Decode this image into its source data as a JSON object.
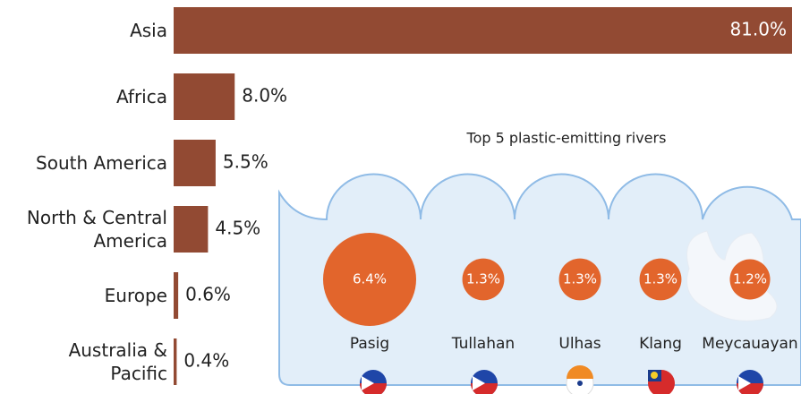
{
  "chart_data": [
    {
      "type": "hbar",
      "categories": [
        "Asia",
        "Africa",
        "South America",
        "North & Central America",
        "Europe",
        "Australia & Pacific"
      ],
      "values": [
        81.0,
        8.0,
        5.5,
        4.5,
        0.6,
        0.4
      ],
      "value_labels": [
        "81.0%",
        "8.0%",
        "5.5%",
        "4.5%",
        "0.6%",
        "0.4%"
      ],
      "color": "#924a33"
    },
    {
      "type": "bubble",
      "title": "Top 5 plastic-emitting rivers",
      "categories": [
        "Pasig",
        "Tullahan",
        "Ulhas",
        "Klang",
        "Meycauayan"
      ],
      "values": [
        6.4,
        1.3,
        1.3,
        1.3,
        1.2
      ],
      "value_labels": [
        "6.4%",
        "1.3%",
        "1.3%",
        "1.3%",
        "1.2%"
      ],
      "color": "#e2652c"
    }
  ]
}
